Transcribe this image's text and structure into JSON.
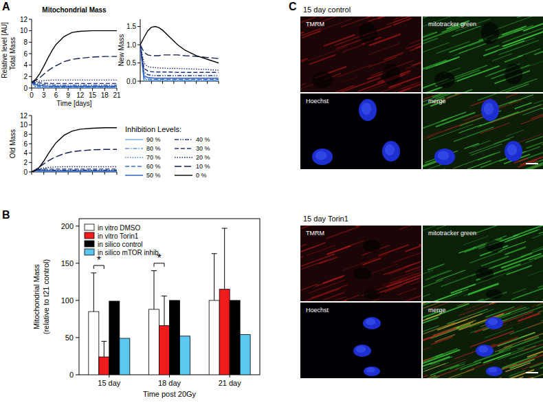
{
  "chart_data": [
    {
      "type": "line",
      "title": "Mitochondrial Mass",
      "x_label": "Time [days]",
      "y_label": "Total Mass",
      "supylabel": "Relative level [AU]",
      "legend_title": "Inhibition Levels:",
      "legend": "lower right",
      "tick_labels": true,
      "x": [
        0,
        1,
        2,
        3,
        4,
        5,
        6,
        8,
        10,
        12,
        15,
        18,
        21
      ],
      "xlim": [
        0,
        21
      ],
      "xticks": [
        0,
        3,
        6,
        9,
        12,
        15,
        18,
        21
      ],
      "ylim": [
        0,
        12
      ],
      "yticks": [
        0,
        2,
        4,
        6,
        8,
        10,
        12
      ],
      "series": [
        {
          "name": "90 %",
          "color": "#6fa8e6",
          "line_style": "solid",
          "values": [
            1,
            0.1,
            0.05,
            0.04,
            0.03,
            0.03,
            0.03,
            0.03,
            0.03,
            0.03,
            0.03,
            0.03,
            0.03
          ]
        },
        {
          "name": "80 %",
          "color": "#5b96de",
          "line_style": "dashdot",
          "values": [
            1,
            0.2,
            0.1,
            0.08,
            0.07,
            0.07,
            0.07,
            0.07,
            0.07,
            0.07,
            0.07,
            0.07,
            0.07
          ]
        },
        {
          "name": "70 %",
          "color": "#4a84d6",
          "line_style": "dotted",
          "values": [
            1,
            0.3,
            0.18,
            0.14,
            0.12,
            0.12,
            0.12,
            0.12,
            0.12,
            0.12,
            0.12,
            0.12,
            0.12
          ]
        },
        {
          "name": "60 %",
          "color": "#3a70c8",
          "line_style": "dashed",
          "values": [
            1,
            0.45,
            0.3,
            0.25,
            0.22,
            0.2,
            0.2,
            0.2,
            0.2,
            0.2,
            0.2,
            0.2,
            0.2
          ]
        },
        {
          "name": "50 %",
          "color": "#2656c0",
          "line_style": "solid",
          "values": [
            1,
            0.6,
            0.45,
            0.38,
            0.34,
            0.32,
            0.3,
            0.3,
            0.3,
            0.3,
            0.3,
            0.3,
            0.3
          ]
        },
        {
          "name": "40 %",
          "color": "#1c3e8c",
          "line_style": "dashdotdot",
          "values": [
            1,
            0.8,
            0.65,
            0.58,
            0.55,
            0.52,
            0.5,
            0.5,
            0.5,
            0.5,
            0.5,
            0.5,
            0.5
          ]
        },
        {
          "name": "30 %",
          "color": "#182f7a",
          "line_style": "dashed",
          "values": [
            1,
            0.95,
            0.9,
            0.85,
            0.82,
            0.8,
            0.8,
            0.8,
            0.8,
            0.8,
            0.8,
            0.8,
            0.8
          ]
        },
        {
          "name": "20 %",
          "color": "#15266a",
          "line_style": "dotted",
          "values": [
            1,
            1.1,
            1.2,
            1.3,
            1.35,
            1.4,
            1.4,
            1.4,
            1.4,
            1.4,
            1.4,
            1.4,
            1.4
          ]
        },
        {
          "name": "10 %",
          "color": "#111d55",
          "line_style": "longdash",
          "values": [
            1,
            1.3,
            1.8,
            2.4,
            3,
            3.5,
            3.9,
            4.6,
            5,
            5.2,
            5.4,
            5.5,
            5.5
          ]
        },
        {
          "name": "0 %",
          "color": "#000000",
          "line_style": "solid",
          "values": [
            1,
            1.5,
            2.5,
            3.8,
            5.2,
            6.5,
            7.6,
            9,
            9.7,
            9.9,
            10,
            10,
            10
          ]
        }
      ]
    },
    {
      "type": "line",
      "y_label": "New Mass",
      "tick_labels": "y",
      "x": [
        0,
        1,
        2,
        3,
        4,
        5,
        6,
        8,
        10,
        12,
        15,
        18,
        21
      ],
      "xlim": [
        0,
        21
      ],
      "xticks": [
        0,
        3,
        6,
        9,
        12,
        15,
        18,
        21
      ],
      "ylim": [
        0,
        1.7
      ],
      "yticks": [
        {
          "value": 0,
          "label": "0.0"
        },
        {
          "value": 0.5,
          "label": "0.5"
        },
        {
          "value": 1,
          "label": "1.0"
        },
        {
          "value": 1.5,
          "label": "1.5"
        }
      ],
      "series": [
        {
          "color": "#6fa8e6",
          "line_style": "solid",
          "values": [
            1,
            0.02,
            0.01,
            0.01,
            0.01,
            0.01,
            0.01,
            0.01,
            0.01,
            0.01,
            0.01,
            0.01,
            0.01
          ]
        },
        {
          "color": "#5b96de",
          "line_style": "dashdot",
          "values": [
            1,
            0.04,
            0.02,
            0.02,
            0.02,
            0.02,
            0.02,
            0.02,
            0.02,
            0.02,
            0.02,
            0.02,
            0.02
          ]
        },
        {
          "color": "#4a84d6",
          "line_style": "dotted",
          "values": [
            1,
            0.06,
            0.04,
            0.03,
            0.03,
            0.03,
            0.03,
            0.03,
            0.03,
            0.03,
            0.03,
            0.03,
            0.03
          ]
        },
        {
          "color": "#3a70c8",
          "line_style": "dashed",
          "values": [
            1,
            0.1,
            0.06,
            0.05,
            0.05,
            0.05,
            0.05,
            0.05,
            0.05,
            0.05,
            0.05,
            0.05,
            0.05
          ]
        },
        {
          "color": "#2656c0",
          "line_style": "solid",
          "values": [
            1,
            0.15,
            0.1,
            0.09,
            0.08,
            0.08,
            0.08,
            0.08,
            0.08,
            0.08,
            0.08,
            0.08,
            0.08
          ]
        },
        {
          "color": "#1c3e8c",
          "line_style": "dashdotdot",
          "values": [
            1,
            0.25,
            0.18,
            0.16,
            0.15,
            0.15,
            0.15,
            0.15,
            0.15,
            0.15,
            0.15,
            0.15,
            0.15
          ]
        },
        {
          "color": "#182f7a",
          "line_style": "dashed",
          "values": [
            1,
            0.35,
            0.28,
            0.26,
            0.25,
            0.25,
            0.25,
            0.25,
            0.24,
            0.24,
            0.24,
            0.24,
            0.24
          ]
        },
        {
          "color": "#15266a",
          "line_style": "dotted",
          "values": [
            1,
            0.5,
            0.4,
            0.38,
            0.37,
            0.36,
            0.36,
            0.35,
            0.35,
            0.34,
            0.33,
            0.32,
            0.3
          ]
        },
        {
          "color": "#111d55",
          "line_style": "longdash",
          "values": [
            1,
            0.8,
            0.72,
            0.7,
            0.7,
            0.7,
            0.72,
            0.72,
            0.72,
            0.7,
            0.68,
            0.65,
            0.62
          ]
        },
        {
          "color": "#000000",
          "line_style": "solid",
          "values": [
            1,
            1.2,
            1.38,
            1.48,
            1.5,
            1.47,
            1.4,
            1.2,
            1,
            0.85,
            0.7,
            0.6,
            0.5
          ]
        }
      ]
    },
    {
      "type": "line",
      "y_label": "Old Mass",
      "tick_labels": "y",
      "x": [
        0,
        1,
        2,
        3,
        4,
        5,
        6,
        8,
        10,
        12,
        15,
        18,
        21
      ],
      "xlim": [
        0,
        21
      ],
      "xticks": [
        0,
        3,
        6,
        9,
        12,
        15,
        18,
        21
      ],
      "ylim": [
        0,
        12
      ],
      "yticks": [
        0,
        2,
        4,
        6,
        8,
        10,
        12
      ],
      "series": [
        {
          "color": "#6fa8e6",
          "line_style": "solid",
          "values": [
            0,
            0.08,
            0.04,
            0.03,
            0.02,
            0.02,
            0.02,
            0.02,
            0.02,
            0.02,
            0.02,
            0.02,
            0.02
          ]
        },
        {
          "color": "#5b96de",
          "line_style": "dashdot",
          "values": [
            0,
            0.15,
            0.08,
            0.06,
            0.05,
            0.05,
            0.05,
            0.05,
            0.05,
            0.05,
            0.05,
            0.05,
            0.05
          ]
        },
        {
          "color": "#4a84d6",
          "line_style": "dotted",
          "values": [
            0,
            0.2,
            0.12,
            0.1,
            0.09,
            0.09,
            0.09,
            0.09,
            0.09,
            0.09,
            0.09,
            0.09,
            0.09
          ]
        },
        {
          "color": "#3a70c8",
          "line_style": "dashed",
          "values": [
            0,
            0.3,
            0.22,
            0.18,
            0.16,
            0.16,
            0.16,
            0.16,
            0.16,
            0.16,
            0.16,
            0.16,
            0.16
          ]
        },
        {
          "color": "#2656c0",
          "line_style": "solid",
          "values": [
            0,
            0.35,
            0.3,
            0.27,
            0.25,
            0.24,
            0.24,
            0.24,
            0.24,
            0.24,
            0.24,
            0.24,
            0.24
          ]
        },
        {
          "color": "#1c3e8c",
          "line_style": "dashdotdot",
          "values": [
            0,
            0.4,
            0.45,
            0.42,
            0.4,
            0.39,
            0.38,
            0.38,
            0.38,
            0.38,
            0.38,
            0.38,
            0.38
          ]
        },
        {
          "color": "#182f7a",
          "line_style": "dashed",
          "values": [
            0,
            0.4,
            0.55,
            0.6,
            0.6,
            0.6,
            0.6,
            0.6,
            0.6,
            0.6,
            0.6,
            0.6,
            0.6
          ]
        },
        {
          "color": "#15266a",
          "line_style": "dotted",
          "values": [
            0,
            0.4,
            0.7,
            0.85,
            0.95,
            1,
            1.05,
            1.1,
            1.1,
            1.1,
            1.1,
            1.1,
            1.1
          ]
        },
        {
          "color": "#111d55",
          "line_style": "longdash",
          "values": [
            0,
            0.5,
            1.1,
            1.7,
            2.3,
            2.8,
            3.2,
            3.9,
            4.3,
            4.5,
            4.7,
            4.8,
            4.8
          ]
        },
        {
          "color": "#000000",
          "line_style": "solid",
          "values": [
            0,
            0.3,
            1.1,
            2.3,
            3.7,
            5,
            6.2,
            7.8,
            8.7,
            9.1,
            9.3,
            9.4,
            9.4
          ]
        }
      ]
    },
    {
      "type": "bar",
      "x_label": "Time post 20Gy",
      "y_label": [
        "Mitochondrial Mass",
        "(relative to t21 control)"
      ],
      "categories": [
        "15 day",
        "18 day",
        "21 day"
      ],
      "ylim": [
        0,
        210
      ],
      "yticks": [
        0,
        50,
        100,
        150,
        200
      ],
      "legend": "upper left",
      "series": [
        {
          "name": "in vitro DMSO",
          "color": "#ffffff",
          "values": [
            85,
            88,
            100
          ],
          "errors": [
            52,
            52,
            63
          ]
        },
        {
          "name": "in vitro Torin1",
          "color": "#ee1c1c",
          "values": [
            24,
            66,
            115
          ],
          "errors": [
            21,
            40,
            82
          ]
        },
        {
          "name": "in silico control",
          "color": "#000000",
          "values": [
            99,
            100,
            100
          ]
        },
        {
          "name": "in silico mTOR inhib.",
          "color": "#5bc8f0",
          "values": [
            49,
            52,
            54
          ]
        }
      ],
      "annotations": [
        {
          "text": "*",
          "category": 0,
          "y": 147
        },
        {
          "text": "*",
          "category": 1,
          "y": 150
        }
      ]
    }
  ],
  "figure": {
    "panel_labels": [
      "A",
      "B",
      "C"
    ],
    "micrographs": [
      {
        "title": "15 day control",
        "channels": [
          "TMRM",
          "mitotracker green",
          "Hoechst",
          "merge"
        ]
      },
      {
        "title": "15 day Torin1",
        "channels": [
          "TMRM",
          "mitotracker green",
          "Hoechst",
          "merge"
        ]
      }
    ]
  }
}
